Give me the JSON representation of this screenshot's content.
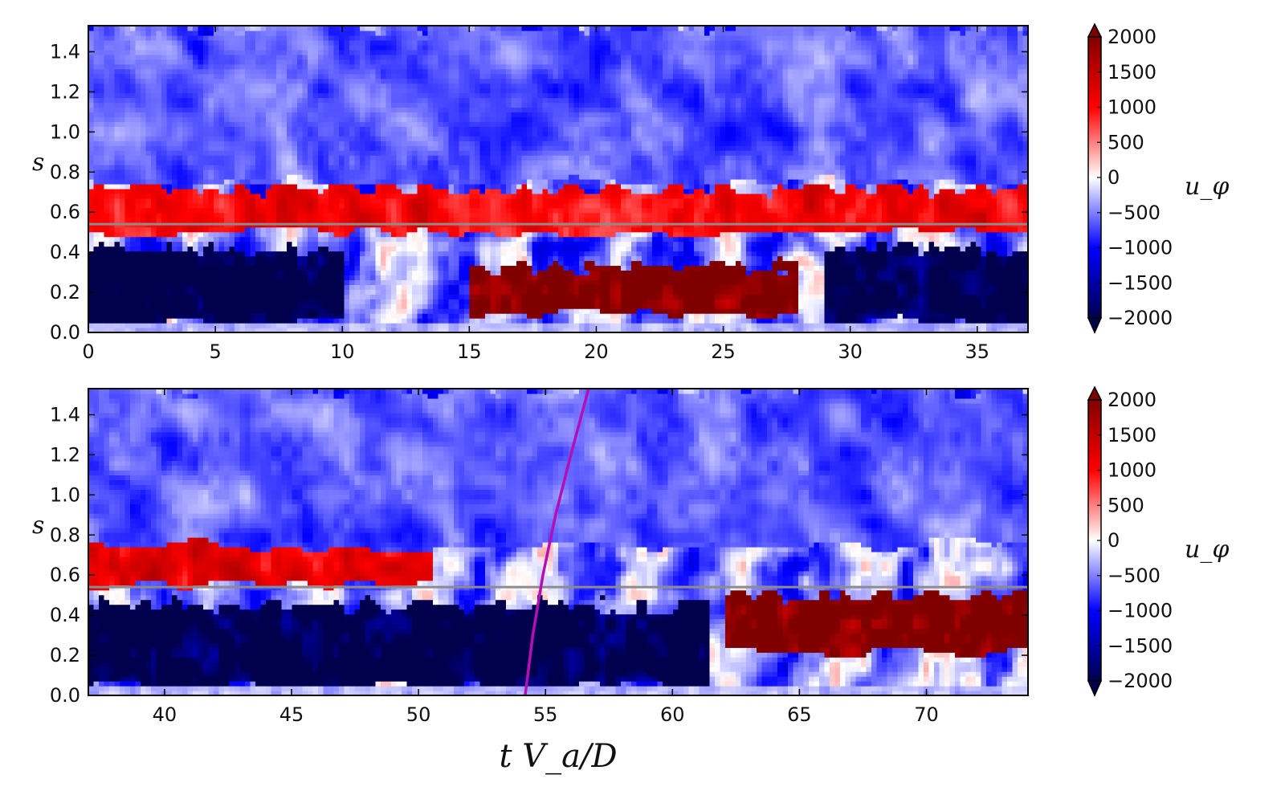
{
  "figure": {
    "xlabel": "t V_a/D",
    "colorbar_label": "u_φ"
  },
  "chart_data": [
    {
      "type": "heatmap",
      "title": "",
      "xlabel": "",
      "ylabel": "s",
      "xlim": [
        0,
        37
      ],
      "ylim": [
        0,
        1.53
      ],
      "xticks": [
        0,
        5,
        10,
        15,
        20,
        25,
        30,
        35
      ],
      "yticks": [
        0.0,
        0.2,
        0.4,
        0.6,
        0.8,
        1.0,
        1.2,
        1.4
      ],
      "xtick_labels": [
        "0",
        "5",
        "10",
        "15",
        "20",
        "25",
        "30",
        "35"
      ],
      "ytick_labels": [
        "0.0",
        "0.2",
        "0.4",
        "0.6",
        "0.8",
        "1.0",
        "1.2",
        "1.4"
      ],
      "colorbar": {
        "label": "u_φ",
        "range": [
          -2000,
          2000
        ],
        "ticks": [
          -2000,
          -1500,
          -1000,
          -500,
          0,
          500,
          1000,
          1500,
          2000
        ],
        "tick_labels": [
          "−2000",
          "−1500",
          "−1000",
          "−500",
          "0",
          "500",
          "1000",
          "1500",
          "2000"
        ],
        "colormap": "seismic",
        "extend": "both"
      },
      "reference_line": {
        "s": 0.54,
        "color": "#8c8c8c"
      },
      "regions": [
        {
          "description": "inner region s<0.45 strongly negative (deep blue) for t<10 and t>29",
          "t": [
            0,
            10
          ],
          "s": [
            0.05,
            0.42
          ],
          "value": -2000
        },
        {
          "t": [
            15,
            28
          ],
          "s": [
            0.1,
            0.33
          ],
          "value": 2000
        },
        {
          "t": [
            29,
            37
          ],
          "s": [
            0.05,
            0.42
          ],
          "value": -2000
        },
        {
          "t": [
            0,
            37
          ],
          "s": [
            0.5,
            0.72
          ],
          "value": 1000
        },
        {
          "t": [
            0,
            37
          ],
          "s": [
            0.75,
            1.53
          ],
          "value": -600
        }
      ]
    },
    {
      "type": "heatmap",
      "title": "",
      "xlabel": "t V_a/D",
      "ylabel": "s",
      "xlim": [
        37,
        74
      ],
      "ylim": [
        0,
        1.53
      ],
      "xticks": [
        40,
        45,
        50,
        55,
        60,
        65,
        70
      ],
      "yticks": [
        0.0,
        0.2,
        0.4,
        0.6,
        0.8,
        1.0,
        1.2,
        1.4
      ],
      "xtick_labels": [
        "40",
        "45",
        "50",
        "55",
        "60",
        "65",
        "70"
      ],
      "ytick_labels": [
        "0.0",
        "0.2",
        "0.4",
        "0.6",
        "0.8",
        "1.0",
        "1.2",
        "1.4"
      ],
      "colorbar": {
        "label": "u_φ",
        "range": [
          -2000,
          2000
        ],
        "ticks": [
          -2000,
          -1500,
          -1000,
          -500,
          0,
          500,
          1000,
          1500,
          2000
        ],
        "tick_labels": [
          "−2000",
          "−1500",
          "−1000",
          "−500",
          "0",
          "500",
          "1000",
          "1500",
          "2000"
        ],
        "colormap": "seismic",
        "extend": "both"
      },
      "reference_line": {
        "s": 0.54,
        "color": "#8c8c8c"
      },
      "trajectory": {
        "color": "#b40fb4",
        "t": [
          54.2,
          54.5,
          54.9,
          55.4,
          56.0,
          56.7
        ],
        "s": [
          0.0,
          0.3,
          0.6,
          0.9,
          1.2,
          1.53
        ]
      },
      "regions": [
        {
          "t": [
            37,
            61.5
          ],
          "s": [
            0.05,
            0.45
          ],
          "value": -2000
        },
        {
          "t": [
            62,
            74
          ],
          "s": [
            0.22,
            0.5
          ],
          "value": 2000
        },
        {
          "t": [
            37,
            50.5
          ],
          "s": [
            0.55,
            0.8
          ],
          "value": 1100
        },
        {
          "t": [
            37,
            74
          ],
          "s": [
            0.75,
            1.53
          ],
          "value": -600
        }
      ]
    }
  ]
}
